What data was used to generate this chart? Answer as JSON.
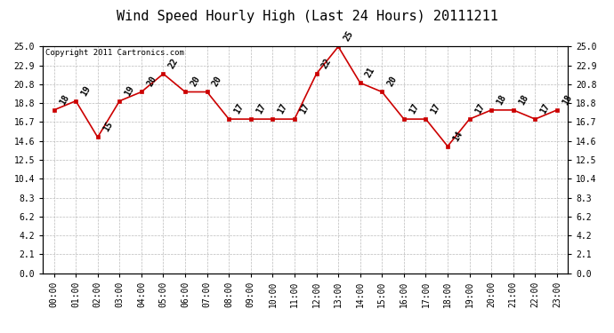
{
  "title": "Wind Speed Hourly High (Last 24 Hours) 20111211",
  "copyright_text": "Copyright 2011 Cartronics.com",
  "hours": [
    "00:00",
    "01:00",
    "02:00",
    "03:00",
    "04:00",
    "05:00",
    "06:00",
    "07:00",
    "08:00",
    "09:00",
    "10:00",
    "11:00",
    "12:00",
    "13:00",
    "14:00",
    "15:00",
    "16:00",
    "17:00",
    "18:00",
    "19:00",
    "20:00",
    "21:00",
    "22:00",
    "23:00"
  ],
  "values": [
    18,
    19,
    15,
    19,
    20,
    22,
    20,
    20,
    17,
    17,
    17,
    17,
    22,
    25,
    21,
    20,
    17,
    17,
    14,
    17,
    18,
    18,
    17,
    18
  ],
  "yticks": [
    0.0,
    2.1,
    4.2,
    6.2,
    8.3,
    10.4,
    12.5,
    14.6,
    16.7,
    18.8,
    20.8,
    22.9,
    25.0
  ],
  "ylim": [
    0.0,
    25.0
  ],
  "line_color": "#cc0000",
  "marker_color": "#cc0000",
  "bg_color": "#ffffff",
  "plot_bg_color": "#ffffff",
  "grid_color": "#bbbbbb",
  "title_fontsize": 11,
  "annotation_fontsize": 7,
  "tick_fontsize": 7,
  "copyright_fontsize": 6.5
}
